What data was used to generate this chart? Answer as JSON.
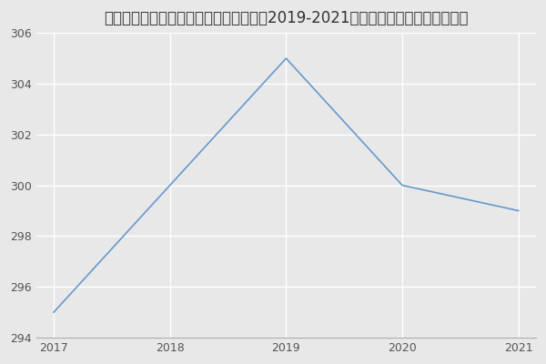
{
  "title": "内蒙古医科大学第三临床医学院内科学（2019-2021历年复试）研究生录取分数线",
  "x": [
    2017,
    2018,
    2019,
    2020,
    2021
  ],
  "y": [
    295,
    300,
    305,
    300,
    299
  ],
  "line_color": "#6699cc",
  "background_color": "#e8e8e8",
  "plot_bg_color": "#e8e8e8",
  "xlim": [
    2017,
    2021
  ],
  "ylim": [
    294,
    306
  ],
  "yticks": [
    294,
    296,
    298,
    300,
    302,
    304,
    306
  ],
  "xticks": [
    2017,
    2018,
    2019,
    2020,
    2021
  ],
  "title_fontsize": 12,
  "grid_color": "#ffffff",
  "grid_linewidth": 1.0,
  "tick_fontsize": 9
}
